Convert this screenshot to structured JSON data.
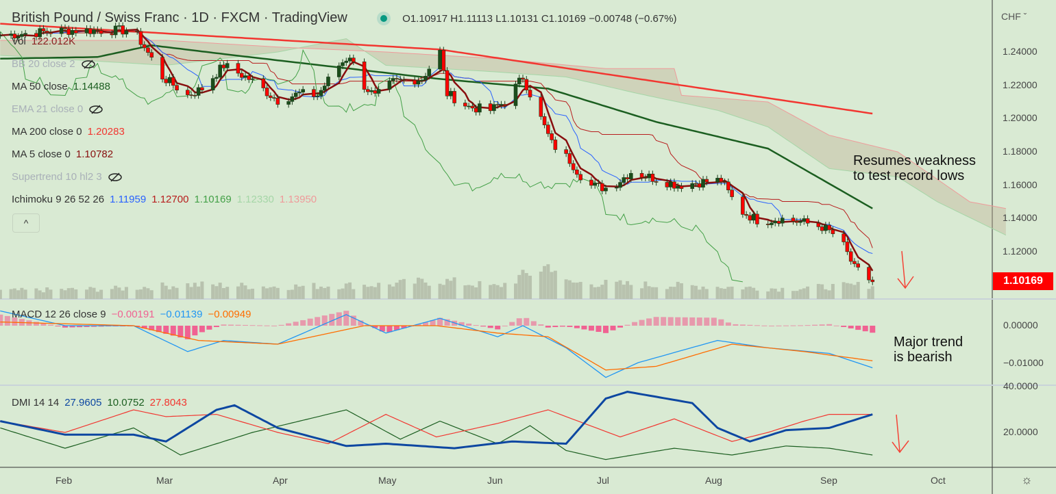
{
  "header": {
    "title": "British Pound / Swiss Franc · 1D · FXCM · TradingView",
    "open": "O1.10917",
    "high": "H1.11113",
    "low": "L1.10131",
    "close": "C1.10169",
    "change": "−0.00748 (−0.67%)",
    "status_color": "#089981"
  },
  "legend": {
    "vol": {
      "label": "Vol",
      "value": "122.012K"
    },
    "bb": {
      "label": "BB 20 close 2",
      "hidden": true
    },
    "ma50": {
      "label": "MA 50 close",
      "value": "1.14488",
      "color": "#1b5e20"
    },
    "ema21": {
      "label": "EMA 21 close 0",
      "hidden": true
    },
    "ma200": {
      "label": "MA 200 close 0",
      "value": "1.20283",
      "color": "#f23630"
    },
    "ma5": {
      "label": "MA 5 close 0",
      "value": "1.10782",
      "color": "#880e0e"
    },
    "supertrend": {
      "label": "Supertrend 10 hl2 3",
      "hidden": true
    },
    "ichimoku": {
      "label": "Ichimoku 9 26 52 26",
      "v1": "1.11959",
      "v2": "1.12700",
      "v3": "1.10169",
      "v4": "1.12330",
      "v5": "1.13950"
    },
    "collapse_label": "^",
    "macd": {
      "label": "MACD 12 26 close 9",
      "hist": "−0.00191",
      "macd": "−0.01139",
      "signal": "−0.00949"
    },
    "dmi": {
      "label": "DMI 14 14",
      "adx": "27.9605",
      "plus": "10.0752",
      "minus": "27.8043"
    }
  },
  "price_axis": {
    "currency": "CHF ˇ",
    "ticks": [
      "1.24000",
      "1.22000",
      "1.20000",
      "1.18000",
      "1.16000",
      "1.14000",
      "1.12000"
    ],
    "last_price": "1.10169",
    "macd_ticks": [
      "0.00000",
      "−0.01000"
    ],
    "dmi_ticks": [
      "40.0000",
      "20.0000"
    ]
  },
  "time_axis": {
    "ticks": [
      "Feb",
      "Mar",
      "Apr",
      "May",
      "Jun",
      "Jul",
      "Aug",
      "Sep",
      "Oct"
    ]
  },
  "annotations": {
    "main_1": "Resumes weakness",
    "main_2": "to test record lows",
    "macd_1": "Major trend",
    "macd_2": "is bearish"
  },
  "chart_data": [
    {
      "type": "candlestick",
      "ylim": [
        1.095,
        1.26
      ],
      "close": [
        [
          "01-14",
          1.25
        ],
        [
          "02-01",
          1.253
        ],
        [
          "02-20",
          1.253
        ],
        [
          "02-23",
          1.243
        ],
        [
          "02-28",
          1.225
        ],
        [
          "03-07",
          1.214
        ],
        [
          "03-11",
          1.218
        ],
        [
          "03-17",
          1.232
        ],
        [
          "03-24",
          1.224
        ],
        [
          "04-01",
          1.211
        ],
        [
          "04-07",
          1.215
        ],
        [
          "04-12",
          1.214
        ],
        [
          "04-18",
          1.232
        ],
        [
          "04-21",
          1.238
        ],
        [
          "04-24",
          1.222
        ],
        [
          "04-28",
          1.213
        ],
        [
          "05-03",
          1.222
        ],
        [
          "05-11",
          1.224
        ],
        [
          "05-16",
          1.24
        ],
        [
          "05-18",
          1.215
        ],
        [
          "05-24",
          1.207
        ],
        [
          "05-30",
          1.205
        ],
        [
          "06-03",
          1.21
        ],
        [
          "06-08",
          1.225
        ],
        [
          "06-12",
          1.205
        ],
        [
          "06-16",
          1.185
        ],
        [
          "06-21",
          1.175
        ],
        [
          "06-26",
          1.16
        ],
        [
          "07-02",
          1.158
        ],
        [
          "07-08",
          1.168
        ],
        [
          "07-13",
          1.165
        ],
        [
          "07-21",
          1.16
        ],
        [
          "07-28",
          1.162
        ],
        [
          "08-02",
          1.163
        ],
        [
          "08-07",
          1.145
        ],
        [
          "08-13",
          1.138
        ],
        [
          "08-18",
          1.14
        ],
        [
          "08-24",
          1.138
        ],
        [
          "08-30",
          1.135
        ],
        [
          "09-04",
          1.128
        ],
        [
          "09-08",
          1.11
        ],
        [
          "09-13",
          1.102
        ]
      ],
      "ma200": [
        [
          "01-14",
          1.257
        ],
        [
          "05-16",
          1.2415
        ],
        [
          "09-13",
          1.203
        ]
      ],
      "ma50": [
        [
          "01-14",
          1.236
        ],
        [
          "02-10",
          1.237
        ],
        [
          "02-25",
          1.244
        ],
        [
          "03-20",
          1.238
        ],
        [
          "05-15",
          1.224
        ],
        [
          "06-15",
          1.218
        ],
        [
          "07-15",
          1.198
        ],
        [
          "08-15",
          1.182
        ],
        [
          "09-13",
          1.146
        ]
      ],
      "ichimoku_span_a": [
        [
          "01-14",
          1.238
        ],
        [
          "03-01",
          1.232
        ],
        [
          "04-01",
          1.24
        ],
        [
          "04-20",
          1.248
        ],
        [
          "05-01",
          1.232
        ],
        [
          "06-01",
          1.228
        ],
        [
          "06-20",
          1.225
        ],
        [
          "07-10",
          1.215
        ],
        [
          "08-01",
          1.205
        ],
        [
          "08-15",
          1.195
        ],
        [
          "09-01",
          1.17
        ],
        [
          "09-20",
          1.165
        ],
        [
          "10-01",
          1.15
        ],
        [
          "10-20",
          1.13
        ]
      ],
      "ichimoku_span_b": [
        [
          "01-14",
          1.247
        ],
        [
          "03-01",
          1.247
        ],
        [
          "04-01",
          1.243
        ],
        [
          "05-01",
          1.24
        ],
        [
          "06-01",
          1.236
        ],
        [
          "07-01",
          1.23
        ],
        [
          "07-20",
          1.23
        ],
        [
          "07-22",
          1.214
        ],
        [
          "08-15",
          1.21
        ],
        [
          "09-01",
          1.19
        ],
        [
          "09-20",
          1.18
        ],
        [
          "10-10",
          1.15
        ],
        [
          "10-20",
          1.146
        ]
      ],
      "volume_k": [
        [
          "01-14",
          20
        ],
        [
          "02-15",
          25
        ],
        [
          "03-07",
          35
        ],
        [
          "04-01",
          30
        ],
        [
          "05-01",
          35
        ],
        [
          "05-16",
          45
        ],
        [
          "06-01",
          30
        ],
        [
          "06-16",
          85
        ],
        [
          "06-20",
          40
        ],
        [
          "07-10",
          35
        ],
        [
          "08-01",
          30
        ],
        [
          "08-20",
          25
        ],
        [
          "09-13",
          35
        ]
      ]
    },
    {
      "type": "macd",
      "ylim": [
        -0.016,
        0.007
      ],
      "macd": [
        [
          "01-14",
          0.004
        ],
        [
          "02-01",
          0.0
        ],
        [
          "02-20",
          0.0
        ],
        [
          "03-07",
          -0.007
        ],
        [
          "03-17",
          -0.004
        ],
        [
          "04-01",
          -0.005
        ],
        [
          "04-20",
          0.003
        ],
        [
          "05-01",
          -0.002
        ],
        [
          "05-16",
          0.002
        ],
        [
          "06-01",
          -0.003
        ],
        [
          "06-08",
          0.0
        ],
        [
          "06-20",
          -0.006
        ],
        [
          "07-01",
          -0.014
        ],
        [
          "07-10",
          -0.01
        ],
        [
          "08-01",
          -0.004
        ],
        [
          "08-15",
          -0.006
        ],
        [
          "09-01",
          -0.0075
        ],
        [
          "09-13",
          -0.0114
        ]
      ],
      "signal": [
        [
          "01-14",
          0.001
        ],
        [
          "02-20",
          0.0
        ],
        [
          "03-10",
          -0.004
        ],
        [
          "04-01",
          -0.005
        ],
        [
          "04-25",
          0.0
        ],
        [
          "05-15",
          0.0
        ],
        [
          "06-01",
          -0.002
        ],
        [
          "06-15",
          -0.003
        ],
        [
          "07-01",
          -0.012
        ],
        [
          "07-15",
          -0.011
        ],
        [
          "08-05",
          -0.005
        ],
        [
          "08-25",
          -0.007
        ],
        [
          "09-13",
          -0.0095
        ]
      ]
    },
    {
      "type": "dmi",
      "ylim": [
        5,
        41
      ],
      "adx": [
        [
          "01-14",
          25
        ],
        [
          "02-01",
          19
        ],
        [
          "02-20",
          19
        ],
        [
          "03-01",
          16
        ],
        [
          "03-15",
          30
        ],
        [
          "03-20",
          32
        ],
        [
          "04-01",
          22
        ],
        [
          "04-20",
          14
        ],
        [
          "05-01",
          15
        ],
        [
          "05-20",
          13
        ],
        [
          "06-05",
          16
        ],
        [
          "06-20",
          15
        ],
        [
          "07-01",
          35
        ],
        [
          "07-07",
          38
        ],
        [
          "07-25",
          33
        ],
        [
          "08-01",
          22
        ],
        [
          "08-10",
          16
        ],
        [
          "08-20",
          21
        ],
        [
          "09-01",
          22
        ],
        [
          "09-13",
          28
        ]
      ],
      "plus_di": [
        [
          "01-14",
          22
        ],
        [
          "02-01",
          13
        ],
        [
          "02-20",
          22
        ],
        [
          "03-05",
          10
        ],
        [
          "03-25",
          20
        ],
        [
          "04-20",
          30
        ],
        [
          "05-05",
          17
        ],
        [
          "05-16",
          25
        ],
        [
          "06-01",
          15
        ],
        [
          "06-10",
          23
        ],
        [
          "06-20",
          12
        ],
        [
          "07-01",
          8
        ],
        [
          "07-20",
          13
        ],
        [
          "08-05",
          10
        ],
        [
          "08-20",
          14
        ],
        [
          "09-01",
          13
        ],
        [
          "09-13",
          10
        ]
      ],
      "minus_di": [
        [
          "01-14",
          25
        ],
        [
          "02-01",
          20
        ],
        [
          "02-20",
          30
        ],
        [
          "03-01",
          27
        ],
        [
          "03-15",
          28
        ],
        [
          "04-01",
          20
        ],
        [
          "04-15",
          15
        ],
        [
          "05-01",
          28
        ],
        [
          "05-15",
          18
        ],
        [
          "06-01",
          24
        ],
        [
          "06-15",
          30
        ],
        [
          "07-05",
          18
        ],
        [
          "07-20",
          26
        ],
        [
          "08-05",
          16
        ],
        [
          "08-15",
          20
        ],
        [
          "08-25",
          25
        ],
        [
          "09-01",
          28
        ],
        [
          "09-13",
          28
        ]
      ]
    }
  ]
}
